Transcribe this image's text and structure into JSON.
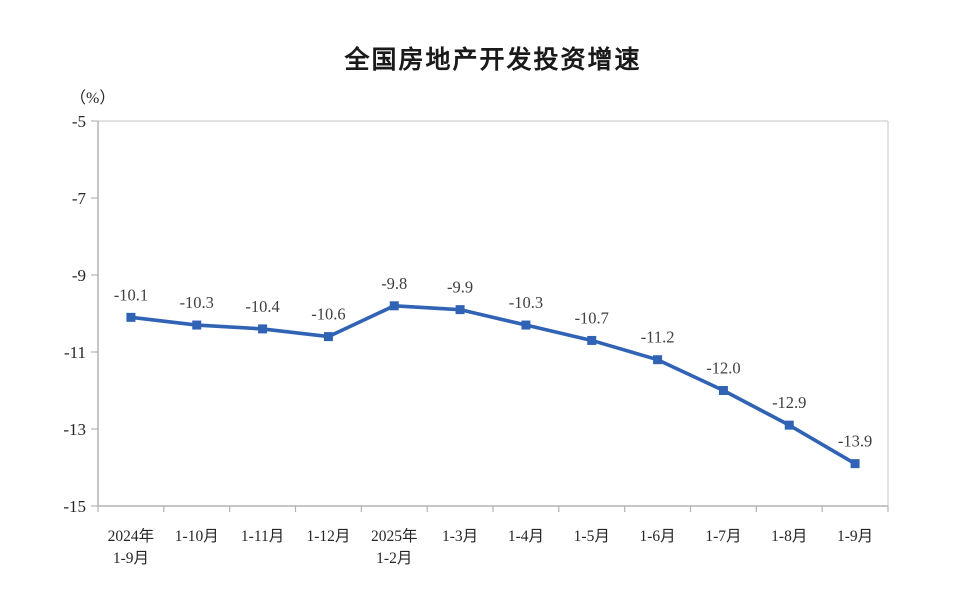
{
  "page": {
    "background": "#ffffff"
  },
  "chart_data": {
    "type": "line",
    "title": "全国房地产开发投资增速",
    "ylabel": "（%）",
    "xlabel": "",
    "categories": [
      "2024年\n1-9月",
      "1-10月",
      "1-11月",
      "1-12月",
      "2025年\n1-2月",
      "1-3月",
      "1-4月",
      "1-5月",
      "1-6月",
      "1-7月",
      "1-8月",
      "1-9月"
    ],
    "values": [
      -10.1,
      -10.3,
      -10.4,
      -10.6,
      -9.8,
      -9.9,
      -10.3,
      -10.7,
      -11.2,
      -12.0,
      -12.9,
      -13.9
    ],
    "point_labels": [
      "-10.1",
      "-10.3",
      "-10.4",
      "-10.6",
      "-9.8",
      "-9.9",
      "-10.3",
      "-10.7",
      "-11.2",
      "-12.0",
      "-12.9",
      "-13.9"
    ],
    "ylim": [
      -15,
      -5
    ],
    "yticks": [
      -5,
      -7,
      -9,
      -11,
      -13,
      -15
    ],
    "grid": false,
    "legend_position": "none",
    "marker": "square",
    "colors": {
      "line": "#3163b5",
      "marker": "#3163b5",
      "point_label": "#3f3f3f",
      "tick_label": "#262626",
      "axis": "#b3b3b3",
      "plot_border": "#d9d9d9",
      "title": "#1a1a1a"
    }
  }
}
